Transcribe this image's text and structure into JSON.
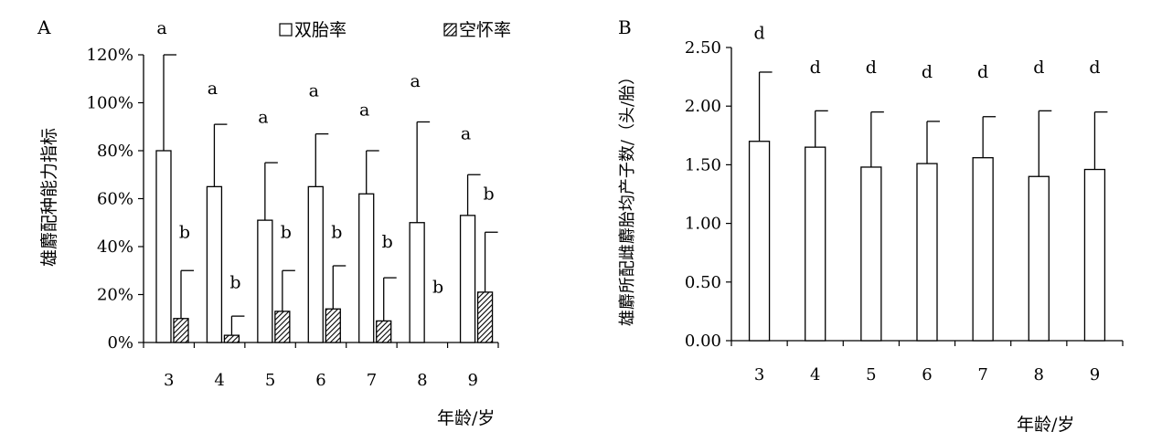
{
  "chart_data": [
    {
      "panel_label": "A",
      "type": "bar",
      "ylabel": "雄麝配种能力指标",
      "xlabel": "年龄/岁",
      "ylim": [
        0,
        120
      ],
      "yticks": [
        "0%",
        "20%",
        "40%",
        "60%",
        "80%",
        "100%",
        "120%"
      ],
      "categories": [
        "3",
        "4",
        "5",
        "6",
        "7",
        "8",
        "9"
      ],
      "legend": {
        "placement": "top-center",
        "entries": [
          "双胎率",
          "空怀率"
        ]
      },
      "series": [
        {
          "name": "双胎率",
          "pattern": "open",
          "values": [
            80,
            65,
            51,
            65,
            62,
            50,
            53
          ],
          "errors": [
            40,
            26,
            24,
            22,
            18,
            42,
            17
          ],
          "letters": [
            "a",
            "a",
            "a",
            "a",
            "a",
            "a",
            "a"
          ],
          "letter_values": [
            131,
            106,
            94,
            105,
            97,
            109,
            87
          ]
        },
        {
          "name": "空怀率",
          "pattern": "hatched",
          "values": [
            10,
            3,
            13,
            14,
            9,
            0,
            21
          ],
          "errors": [
            20,
            8,
            17,
            18,
            18,
            0,
            25
          ],
          "letters": [
            "b",
            "b",
            "b",
            "b",
            "b",
            "b",
            "b"
          ],
          "letter_values": [
            46,
            25,
            46,
            46,
            42,
            23,
            62
          ]
        }
      ]
    },
    {
      "panel_label": "B",
      "type": "bar",
      "ylabel": "雄麝所配雌麝胎均产子数/（头/胎）",
      "xlabel": "年龄/岁",
      "ylim": [
        0,
        2.5
      ],
      "yticks": [
        "0.00",
        "0.50",
        "1.00",
        "1.50",
        "2.00",
        "2.50"
      ],
      "categories": [
        "3",
        "4",
        "5",
        "6",
        "7",
        "8",
        "9"
      ],
      "series": [
        {
          "values": [
            1.7,
            1.65,
            1.48,
            1.51,
            1.56,
            1.4,
            1.46
          ],
          "errors": [
            0.59,
            0.31,
            0.47,
            0.36,
            0.35,
            0.56,
            0.49
          ],
          "letters": [
            "d",
            "d",
            "d",
            "d",
            "d",
            "d",
            "d"
          ],
          "letter_values": [
            2.62,
            2.33,
            2.33,
            2.29,
            2.29,
            2.33,
            2.33
          ]
        }
      ]
    }
  ]
}
